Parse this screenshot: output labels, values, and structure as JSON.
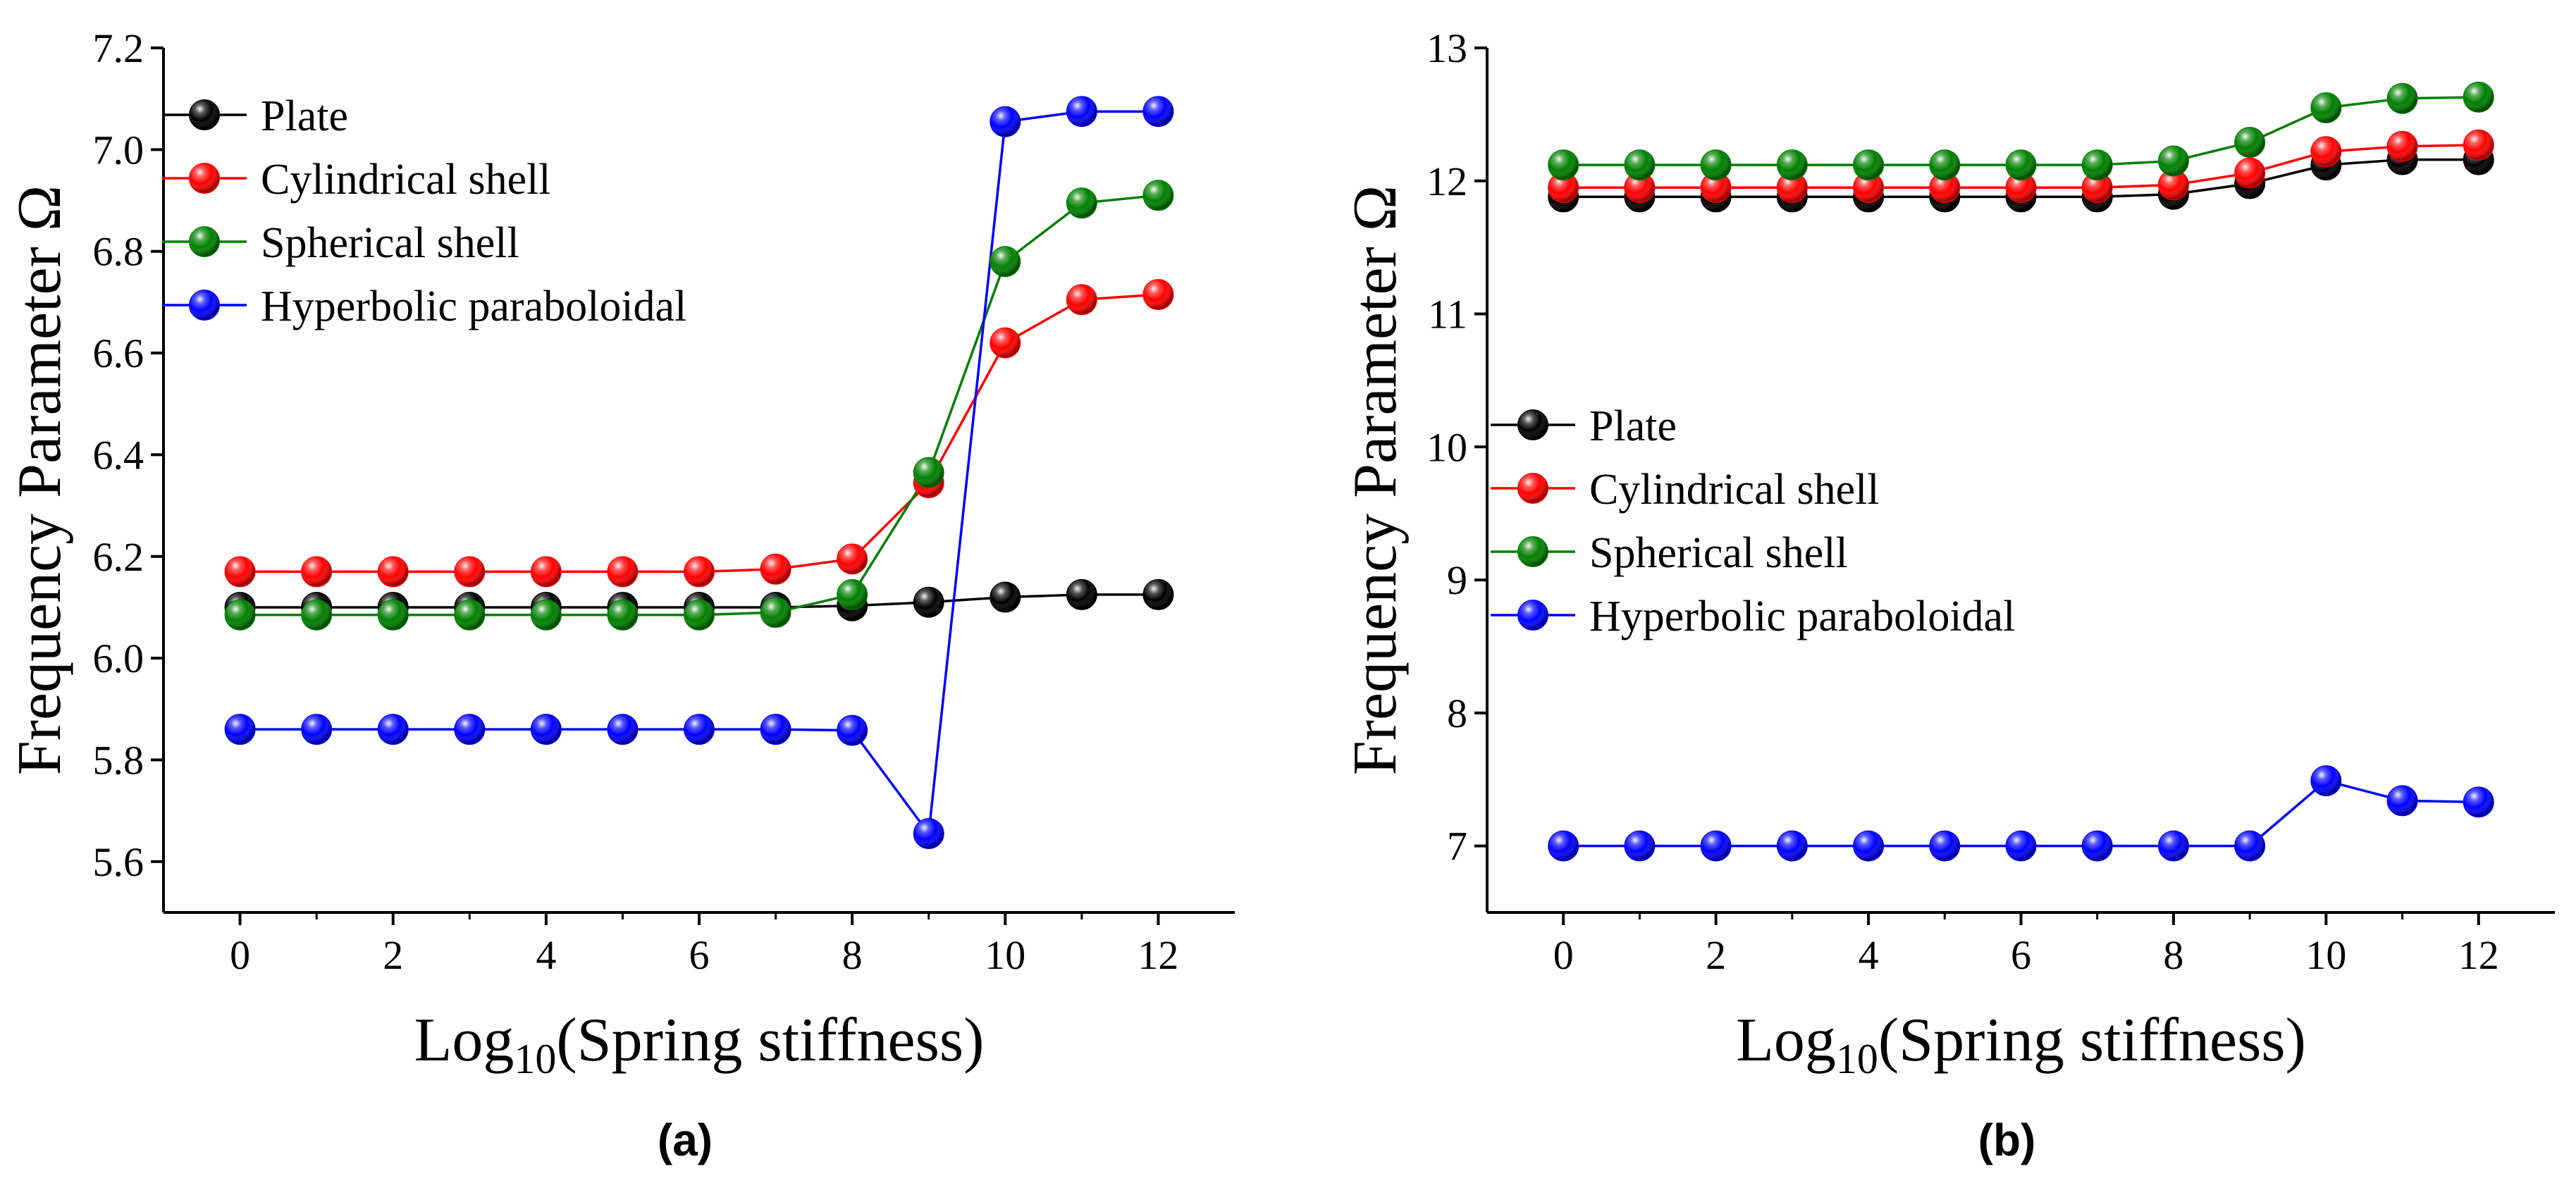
{
  "chart_data": [
    {
      "type": "line",
      "panel": "(a)",
      "xlabel_main": "Log",
      "xlabel_sub": "10",
      "xlabel_rest": "(Spring stiffness)",
      "ylabel": "Frequency Parameter Ω",
      "xlim": [
        -1,
        13
      ],
      "ylim": [
        5.5,
        7.2
      ],
      "xticks": [
        0,
        2,
        4,
        6,
        8,
        10,
        12
      ],
      "yticks": [
        5.6,
        5.8,
        6.0,
        6.2,
        6.4,
        6.6,
        6.8,
        7.0,
        7.2
      ],
      "ytick_decimals": 1,
      "legend_position": "top-left",
      "x": [
        0,
        1,
        2,
        3,
        4,
        5,
        6,
        7,
        8,
        9,
        10,
        11,
        12
      ],
      "series": [
        {
          "name": "Plate",
          "color": "#000000",
          "values": [
            6.1,
            6.1,
            6.1,
            6.1,
            6.1,
            6.1,
            6.1,
            6.1,
            6.103,
            6.11,
            6.12,
            6.125,
            6.125
          ]
        },
        {
          "name": "Cylindrical shell",
          "color": "#ff0000",
          "values": [
            6.17,
            6.17,
            6.17,
            6.17,
            6.17,
            6.17,
            6.17,
            6.175,
            6.195,
            6.345,
            6.62,
            6.705,
            6.715
          ]
        },
        {
          "name": "Spherical shell",
          "color": "#008000",
          "values": [
            6.085,
            6.085,
            6.085,
            6.085,
            6.085,
            6.085,
            6.085,
            6.09,
            6.125,
            6.365,
            6.78,
            6.895,
            6.91
          ]
        },
        {
          "name": "Hyperbolic paraboloidal",
          "color": "#0000ff",
          "values": [
            5.86,
            5.86,
            5.86,
            5.86,
            5.86,
            5.86,
            5.86,
            5.86,
            5.858,
            5.655,
            7.055,
            7.075,
            7.075
          ]
        }
      ]
    },
    {
      "type": "line",
      "panel": "(b)",
      "xlabel_main": "Log",
      "xlabel_sub": "10",
      "xlabel_rest": "(Spring stiffness)",
      "ylabel": "Frequency Parameter Ω",
      "xlim": [
        -1,
        13
      ],
      "ylim": [
        6.5,
        13
      ],
      "xticks": [
        0,
        2,
        4,
        6,
        8,
        10,
        12
      ],
      "yticks": [
        7,
        8,
        9,
        10,
        11,
        12,
        13
      ],
      "ytick_decimals": 0,
      "legend_position": "middle-left",
      "x": [
        0,
        1,
        2,
        3,
        4,
        5,
        6,
        7,
        8,
        9,
        10,
        11,
        12
      ],
      "series": [
        {
          "name": "Plate",
          "color": "#000000",
          "values": [
            11.88,
            11.88,
            11.88,
            11.88,
            11.88,
            11.88,
            11.88,
            11.88,
            11.9,
            11.98,
            12.12,
            12.16,
            12.16
          ]
        },
        {
          "name": "Cylindrical shell",
          "color": "#ff0000",
          "values": [
            11.95,
            11.95,
            11.95,
            11.95,
            11.95,
            11.95,
            11.95,
            11.95,
            11.97,
            12.06,
            12.22,
            12.26,
            12.27
          ]
        },
        {
          "name": "Spherical shell",
          "color": "#008000",
          "values": [
            12.12,
            12.12,
            12.12,
            12.12,
            12.12,
            12.12,
            12.12,
            12.12,
            12.15,
            12.29,
            12.55,
            12.62,
            12.63
          ]
        },
        {
          "name": "Hyperbolic paraboloidal",
          "color": "#0000ff",
          "values": [
            7.0,
            7.0,
            7.0,
            7.0,
            7.0,
            7.0,
            7.0,
            7.0,
            7.0,
            7.0,
            7.49,
            7.34,
            7.33
          ]
        }
      ]
    }
  ]
}
